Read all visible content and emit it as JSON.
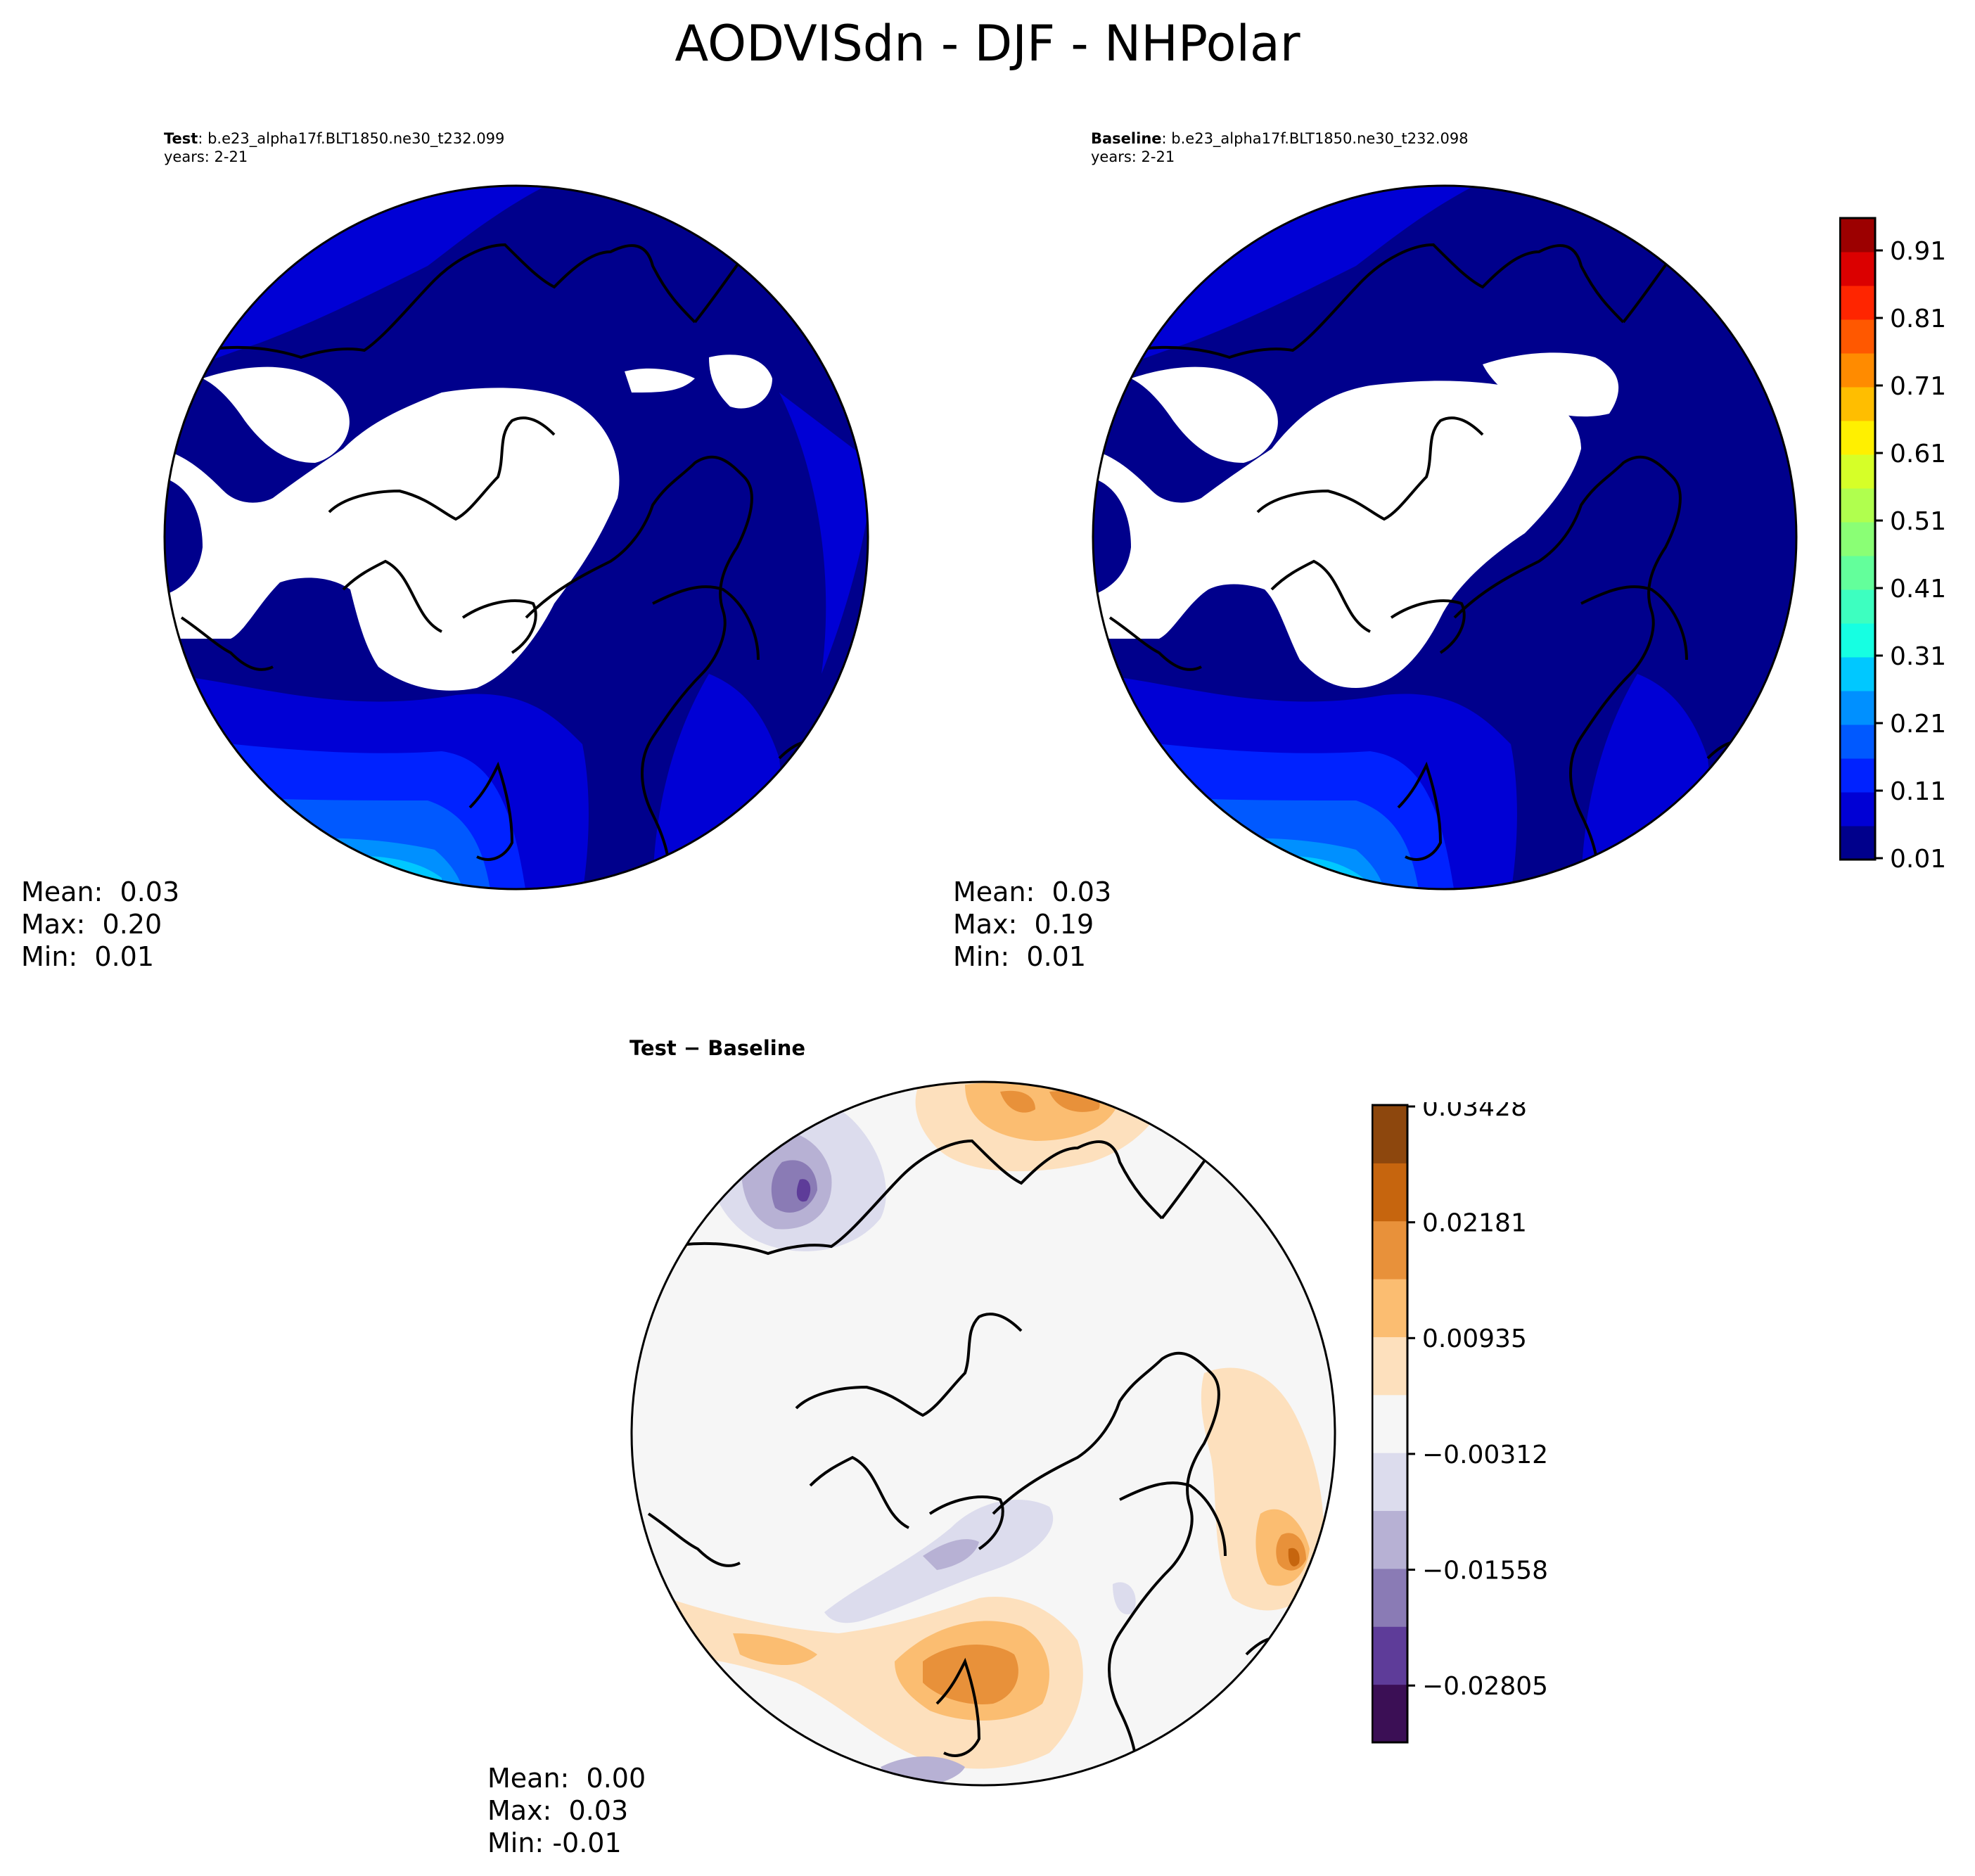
{
  "title": "AODVISdn - DJF - NHPolar",
  "panels": [
    {
      "id": "test",
      "label": "Test",
      "case": "b.e23_alpha17f.BLT1850.ne30_t232.099",
      "years": "years: 2-21",
      "stats": {
        "mean_label": "Mean:",
        "mean": "0.03",
        "max_label": "Max:",
        "max": "0.20",
        "min_label": "Min:",
        "min": "0.01"
      }
    },
    {
      "id": "baseline",
      "label": "Baseline",
      "case": "b.e23_alpha17f.BLT1850.ne30_t232.098",
      "years": "years: 2-21",
      "stats": {
        "mean_label": "Mean:",
        "mean": "0.03",
        "max_label": "Max:",
        "max": "0.19",
        "min_label": "Min:",
        "min": "0.01"
      }
    },
    {
      "id": "diff",
      "label": "Test − Baseline",
      "stats": {
        "mean_label": "Mean:",
        "mean": "0.00",
        "max_label": "Max:",
        "max": "0.03",
        "min_label": "Min:",
        "min": "-0.01"
      }
    }
  ],
  "colorbar_main": {
    "ticks": [
      "0.01",
      "0.11",
      "0.21",
      "0.31",
      "0.41",
      "0.51",
      "0.61",
      "0.71",
      "0.81",
      "0.91"
    ],
    "colors": [
      "#00008c",
      "#0000d5",
      "#0022ff",
      "#0059ff",
      "#0090ff",
      "#00c8ff",
      "#16ffe2",
      "#3dffc0",
      "#63ff9b",
      "#8aff75",
      "#b0ff4e",
      "#d6ff28",
      "#fff000",
      "#ffbe00",
      "#ff8b00",
      "#ff5800",
      "#ff2500",
      "#db0000",
      "#9c0000"
    ]
  },
  "colorbar_diff": {
    "ticks": [
      "0.03428",
      "0.02181",
      "0.00935",
      "−0.00312",
      "−0.01558",
      "−0.02805"
    ],
    "colors": [
      "#3b0f55",
      "#5e3c99",
      "#8a7bb5",
      "#b7b1d4",
      "#dcdced",
      "#f6f6f6",
      "#fde0bd",
      "#fbbd71",
      "#e8913a",
      "#c6650e",
      "#8d470d"
    ]
  },
  "colors": {
    "land_outline": "#000000",
    "missing": "#ffffff",
    "background": "#00008c"
  }
}
